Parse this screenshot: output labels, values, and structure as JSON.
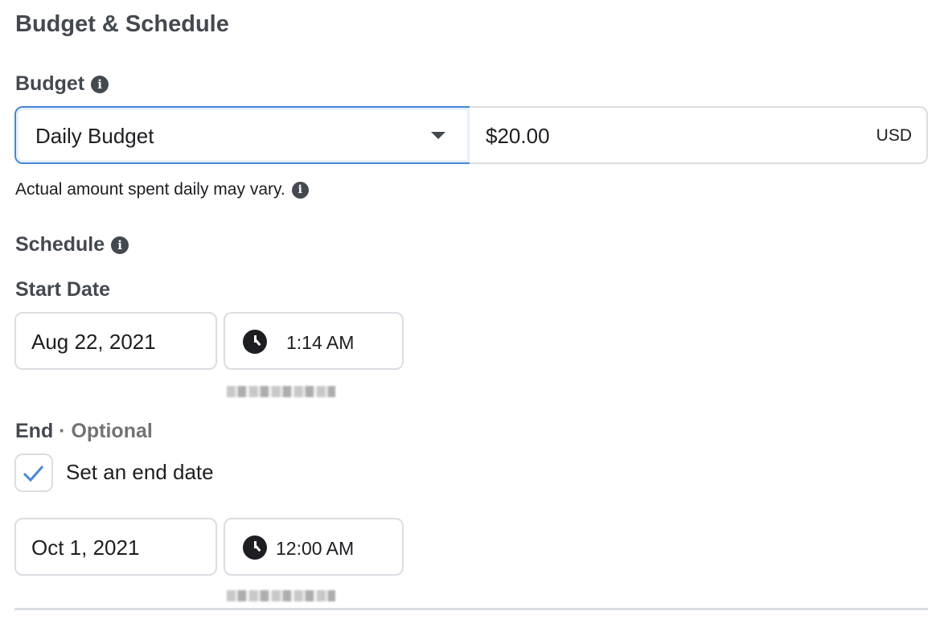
{
  "section_title": "Budget & Schedule",
  "budget": {
    "label": "Budget",
    "type_select": "Daily Budget",
    "amount": "$20.00",
    "currency": "USD",
    "note": "Actual amount spent daily may vary."
  },
  "schedule": {
    "label": "Schedule",
    "start": {
      "label": "Start Date",
      "date": "Aug 22, 2021",
      "time": "1:14 AM"
    },
    "end": {
      "label": "End",
      "optional": "· Optional",
      "checkbox_label": "Set an end date",
      "checked": true,
      "date": "Oct 1, 2021",
      "time": "12:00 AM"
    }
  },
  "colors": {
    "accent": "#4a86d9",
    "heading": "#444950"
  },
  "icons": [
    "info-icon",
    "caret-down-icon",
    "clock-icon",
    "checkmark-icon"
  ]
}
